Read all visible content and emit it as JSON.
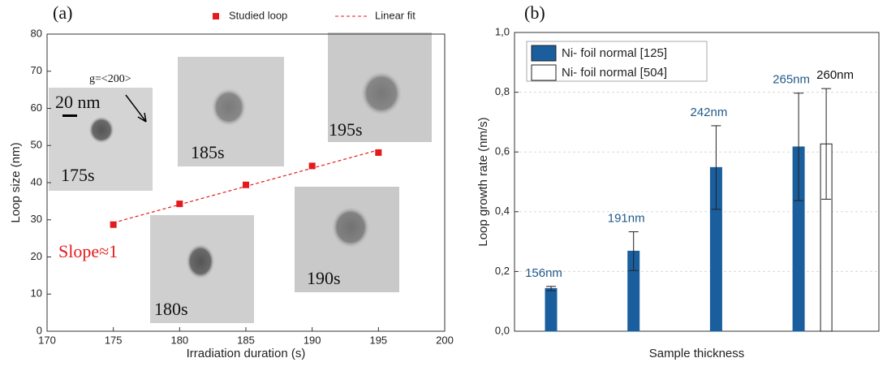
{
  "chart_data": [
    {
      "type": "scatter",
      "annotations": [
        "(a)",
        "Slope≈1",
        "175s",
        "180s",
        "185s",
        "190s",
        "195s",
        "20 nm",
        "g=<200>"
      ],
      "x_label": "Irradiation duration (s)",
      "y_label": "Loop size (nm)",
      "xlim": [
        170,
        200
      ],
      "xticks": [
        170,
        175,
        180,
        185,
        190,
        195,
        200
      ],
      "ylim": [
        0,
        80
      ],
      "yticks": [
        0,
        10,
        20,
        30,
        40,
        50,
        60,
        70,
        80
      ],
      "series": [
        {
          "name": "Studied loop",
          "color": "#e41a1c",
          "style": "markers",
          "x": [
            175,
            180,
            185,
            190,
            195
          ],
          "values": [
            28.7,
            34.3,
            39.4,
            44.5,
            48.1
          ]
        },
        {
          "name": "Linear fit",
          "color": "#e41a1c",
          "style": "dashed",
          "x": [
            175,
            195
          ],
          "values": [
            29.2,
            48.8
          ]
        }
      ]
    },
    {
      "type": "bar",
      "annotations": [
        "(b)"
      ],
      "x_label": "Sample thickness",
      "y_label": "Loop growth rate (nm/s)",
      "categories": [
        null,
        null,
        null,
        null
      ],
      "ylim": [
        0,
        1.0
      ],
      "yticks": [
        {
          "value": 0,
          "label": "0,0"
        },
        {
          "value": 0.2,
          "label": "0,2"
        },
        {
          "value": 0.4,
          "label": "0,4"
        },
        {
          "value": 0.6,
          "label": "0,6"
        },
        {
          "value": 0.8,
          "label": "0,8"
        },
        {
          "value": 1.0,
          "label": "1,0"
        }
      ],
      "grid": true,
      "series": [
        {
          "name": "Ni- foil normal [125]",
          "color": "#1a5e9e",
          "label_color": "#1f5a8c",
          "values": [
            0.143,
            0.268,
            0.548,
            0.617
          ],
          "errors": [
            0.007,
            0.065,
            0.14,
            0.18
          ],
          "bar_labels": [
            "156nm",
            "191nm",
            "242nm",
            "265nm"
          ]
        },
        {
          "name": "Ni- foil normal [504]",
          "color": "#ffffff",
          "label_color": "#111111",
          "values": [
            null,
            null,
            null,
            0.627
          ],
          "errors": [
            null,
            null,
            null,
            0.185
          ],
          "bar_labels": [
            null,
            null,
            null,
            "260nm"
          ]
        }
      ]
    }
  ]
}
